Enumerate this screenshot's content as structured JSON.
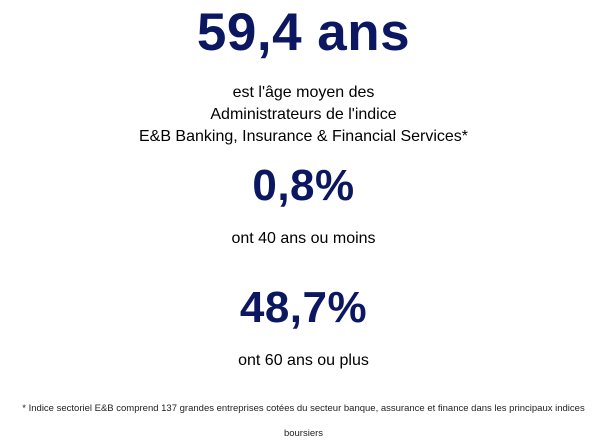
{
  "stats": [
    {
      "value": "59,4 ans",
      "caption_lines": [
        "est l'âge moyen des",
        "Administrateurs de l'indice",
        "E&B Banking, Insurance & Financial Services*"
      ]
    },
    {
      "value": "0,8%",
      "caption": "ont 40 ans ou moins"
    },
    {
      "value": "48,7%",
      "caption": "ont 60 ans ou plus"
    }
  ],
  "footnote": "* Indice sectoriel E&B comprend 137 grandes entreprises cotées du secteur banque, assurance et finance dans les principaux indices boursiers",
  "colors": {
    "stat_value": "#0b1760",
    "text": "#000000",
    "background": "#ffffff"
  }
}
